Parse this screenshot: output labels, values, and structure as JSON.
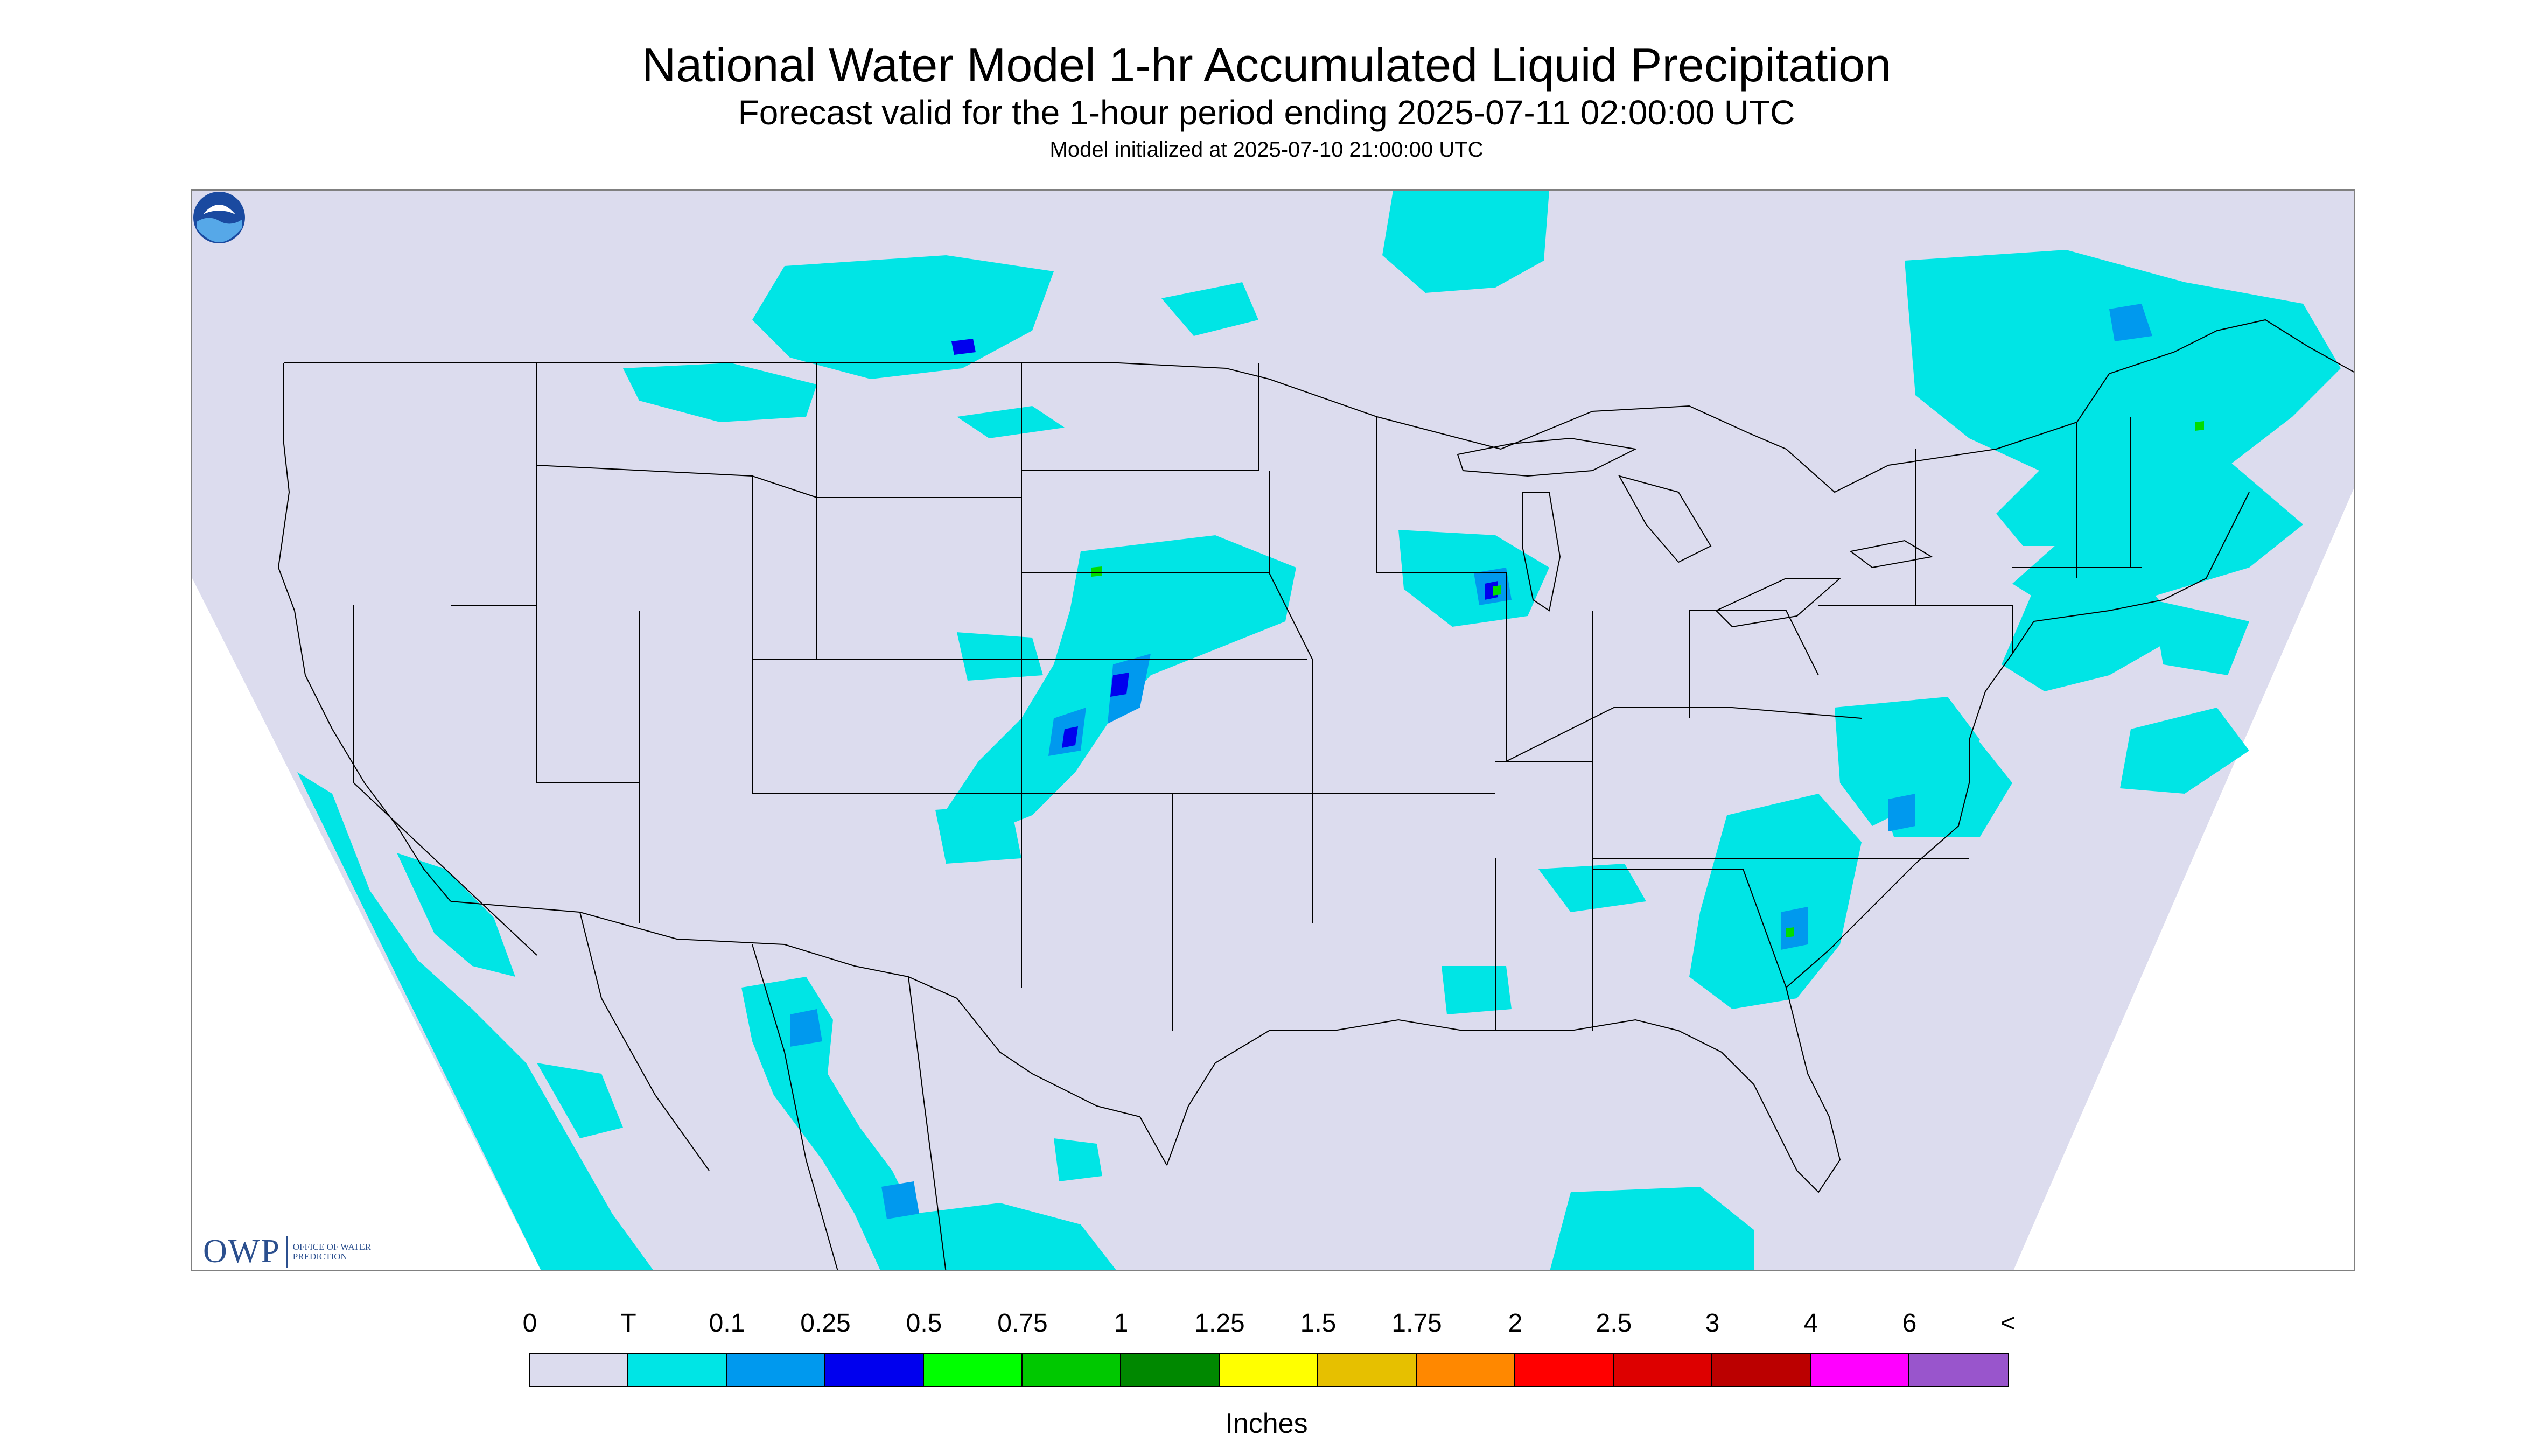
{
  "title": "National Water Model 1-hr Accumulated Liquid Precipitation",
  "subtitle": "Forecast valid for the 1-hour period ending 2025-07-11 02:00:00 UTC",
  "init_line": "Model initialized at 2025-07-10 21:00:00 UTC",
  "logos": {
    "owp_mark": "OWP",
    "owp_text": "OFFICE OF WATER PREDICTION"
  },
  "colors": {
    "domain_fill": "#dcdcee",
    "outside_domain": "#ffffff",
    "boundary_lines": "#000000",
    "trace_precip": "#00e5e5",
    "light_precip": "#0099ee",
    "heavier_precip": "#0000ee",
    "highlight_precip": "#00dd00"
  },
  "legend": {
    "labels": [
      "0",
      "T",
      "0.1",
      "0.25",
      "0.5",
      "0.75",
      "1",
      "1.25",
      "1.5",
      "1.75",
      "2",
      "2.5",
      "3",
      "4",
      "6",
      "<"
    ],
    "colors": [
      "#dcdcee",
      "#00e5e5",
      "#0099ee",
      "#0000ee",
      "#00ff00",
      "#00c800",
      "#008800",
      "#ffff00",
      "#e6c000",
      "#ff8800",
      "#ff0000",
      "#dd0000",
      "#bb0000",
      "#ff00ff",
      "#9955cc"
    ],
    "units": "Inches"
  }
}
